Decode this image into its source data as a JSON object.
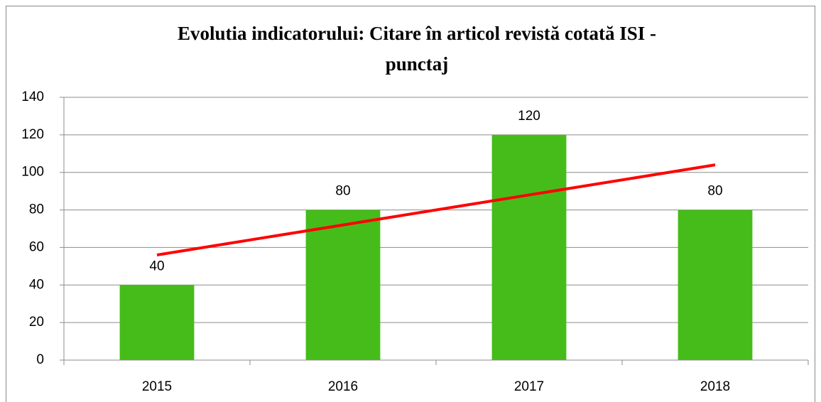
{
  "chart_data": {
    "type": "bar",
    "title": [
      "Evolutia indicatorului: Citare în articol revistă cotată ISI -",
      "punctaj"
    ],
    "categories": [
      "2015",
      "2016",
      "2017",
      "2018"
    ],
    "values": [
      40,
      80,
      120,
      80
    ],
    "color": "#46bc1a",
    "trendline": {
      "color": "#ff0000",
      "values": [
        56,
        72,
        88,
        104
      ]
    },
    "ylim": [
      0,
      140
    ],
    "yticks": [
      0,
      20,
      40,
      60,
      80,
      100,
      120,
      140
    ],
    "grid": true
  }
}
